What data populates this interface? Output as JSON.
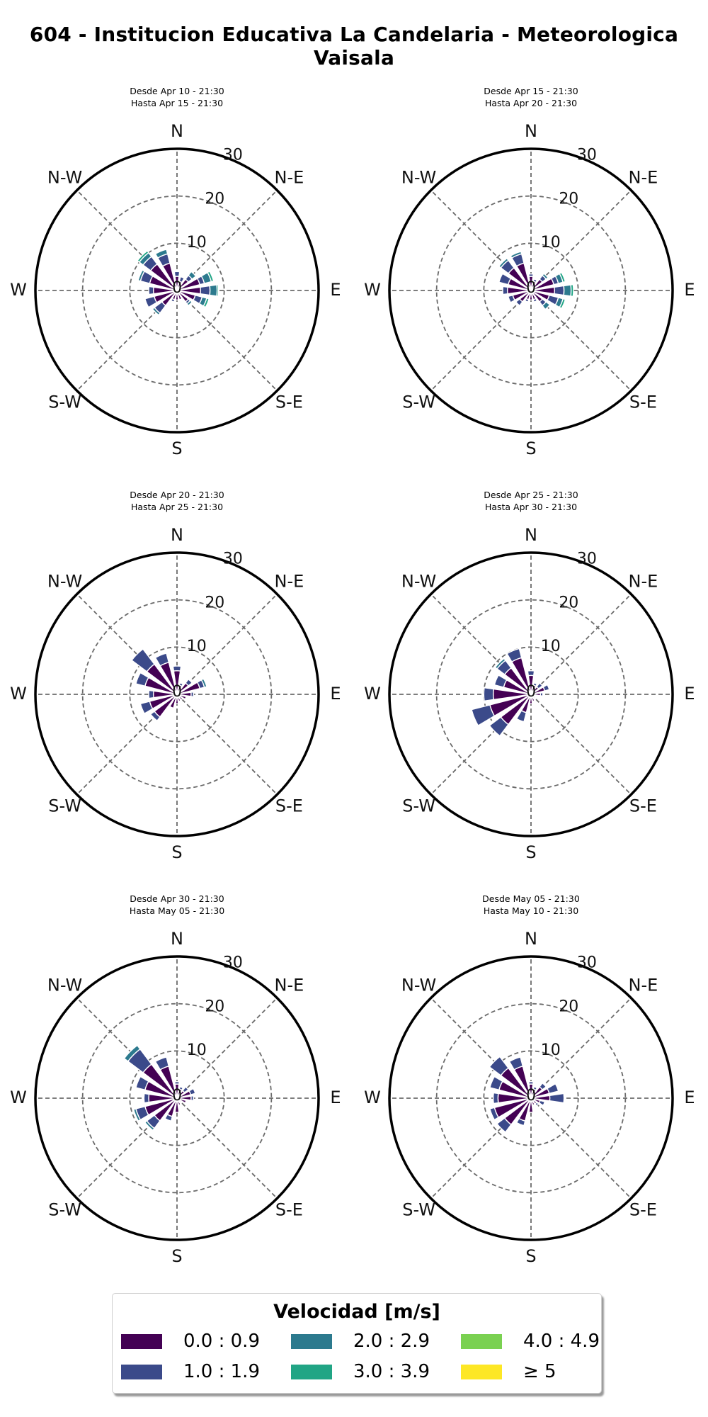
{
  "title": "604 - Institucion Educativa La Candelaria - Meteorologica Vaisala",
  "chart_data": {
    "type": "windrose",
    "directions": [
      "N",
      "NNE",
      "NE",
      "ENE",
      "E",
      "ESE",
      "SE",
      "SSE",
      "S",
      "SSW",
      "SW",
      "WSW",
      "W",
      "WNW",
      "NW",
      "NNW"
    ],
    "compass_labels": [
      "N",
      "N-E",
      "E",
      "S-E",
      "S",
      "S-W",
      "W",
      "N-W"
    ],
    "radial_ticks": [
      "0",
      "10",
      "20",
      "30"
    ],
    "rmax": 30,
    "legend_title": "Velocidad [m/s]",
    "bins": [
      {
        "label": "0.0 : 0.9",
        "color": "#440154"
      },
      {
        "label": "1.0 : 1.9",
        "color": "#3b4a8a"
      },
      {
        "label": "2.0 : 2.9",
        "color": "#2c7a8e"
      },
      {
        "label": "3.0 : 3.9",
        "color": "#21a585"
      },
      {
        "label": "4.0 : 4.9",
        "color": "#7ad151"
      },
      {
        "label": "≥ 5",
        "color": "#fde725"
      }
    ],
    "panels": [
      {
        "desde": "Desde Apr 10 - 21:30",
        "hasta": "Hasta Apr 15 - 21:30",
        "freq": [
          [
            3,
            1,
            0,
            0,
            0,
            0
          ],
          [
            2,
            1,
            0,
            0,
            0,
            0
          ],
          [
            3,
            1,
            1,
            0,
            0,
            0
          ],
          [
            5,
            1,
            1.5,
            0.5,
            0,
            0
          ],
          [
            5,
            2,
            1.5,
            0.3,
            0,
            0
          ],
          [
            4,
            1.5,
            1,
            0.5,
            0,
            0
          ],
          [
            3,
            0.5,
            0.5,
            0,
            0,
            0
          ],
          [
            2,
            0,
            0,
            0,
            0,
            0
          ],
          [
            2,
            0,
            0,
            0,
            0,
            0
          ],
          [
            2,
            0.5,
            0,
            0,
            0,
            0
          ],
          [
            4,
            2,
            0.5,
            0,
            0,
            0
          ],
          [
            5,
            2,
            0,
            0,
            0,
            0
          ],
          [
            5,
            1,
            0,
            0,
            0,
            0
          ],
          [
            6,
            2,
            0.5,
            0,
            0,
            0
          ],
          [
            7,
            2,
            1,
            0.5,
            0,
            0
          ],
          [
            6,
            2,
            1,
            0,
            0,
            0
          ]
        ]
      },
      {
        "desde": "Desde Apr 15 - 21:30",
        "hasta": "Hasta Apr 20 - 21:30",
        "freq": [
          [
            3,
            0.5,
            0,
            0,
            0,
            0
          ],
          [
            2,
            0.5,
            0,
            0,
            0,
            0
          ],
          [
            3,
            1,
            0.5,
            0,
            0,
            0
          ],
          [
            5,
            1,
            1,
            0.5,
            0,
            0
          ],
          [
            5,
            2,
            1.5,
            0.5,
            0,
            0
          ],
          [
            4,
            2,
            1,
            0.5,
            0,
            0
          ],
          [
            3,
            1,
            1,
            0,
            0,
            0
          ],
          [
            2,
            0.5,
            0,
            0,
            0,
            0
          ],
          [
            2,
            0,
            0,
            0,
            0,
            0
          ],
          [
            2,
            0.5,
            0,
            0,
            0,
            0
          ],
          [
            3,
            1,
            0,
            0,
            0,
            0
          ],
          [
            4,
            1,
            0,
            0,
            0,
            0
          ],
          [
            5,
            1,
            0,
            0,
            0,
            0
          ],
          [
            5,
            2,
            0,
            0,
            0,
            0
          ],
          [
            6,
            2,
            0.5,
            0,
            0,
            0
          ],
          [
            6,
            2,
            0.5,
            0,
            0,
            0
          ]
        ]
      },
      {
        "desde": "Desde Apr 20 - 21:30",
        "hasta": "Hasta Apr 25 - 21:30",
        "freq": [
          [
            5,
            1,
            0,
            0,
            0,
            0
          ],
          [
            2,
            0.5,
            0,
            0,
            0,
            0
          ],
          [
            3,
            1,
            0,
            0,
            0,
            0
          ],
          [
            5,
            1,
            0.5,
            0,
            0,
            0
          ],
          [
            3,
            0.5,
            0,
            0,
            0,
            0
          ],
          [
            2,
            0,
            0,
            0,
            0,
            0
          ],
          [
            1.5,
            0,
            0,
            0,
            0,
            0
          ],
          [
            1.5,
            0,
            0,
            0,
            0,
            0
          ],
          [
            2,
            0,
            0,
            0,
            0,
            0
          ],
          [
            3,
            0,
            0,
            0,
            0,
            0
          ],
          [
            6,
            1,
            0,
            0,
            0,
            0
          ],
          [
            6,
            2,
            0,
            0,
            0,
            0
          ],
          [
            5,
            1,
            0,
            0,
            0,
            0
          ],
          [
            7,
            2,
            0,
            0,
            0,
            0
          ],
          [
            8,
            4,
            0,
            0,
            0,
            0
          ],
          [
            7,
            2,
            0,
            0,
            0,
            0
          ]
        ]
      },
      {
        "desde": "Desde Apr 25 - 21:30",
        "hasta": "Hasta Apr 30 - 21:30",
        "freq": [
          [
            4,
            1,
            0,
            0,
            0,
            0
          ],
          [
            2,
            0.5,
            0,
            0,
            0,
            0
          ],
          [
            2,
            1,
            0,
            0,
            0,
            0
          ],
          [
            3,
            1,
            0,
            0,
            0,
            0
          ],
          [
            2,
            0.5,
            0,
            0,
            0,
            0
          ],
          [
            1,
            0,
            0,
            0,
            0,
            0
          ],
          [
            1,
            0,
            0,
            0,
            0,
            0
          ],
          [
            1.5,
            0,
            0,
            0,
            0,
            0
          ],
          [
            2,
            0,
            0,
            0,
            0,
            0
          ],
          [
            4,
            2,
            0,
            0,
            0,
            0
          ],
          [
            8,
            3,
            0,
            0,
            0,
            0
          ],
          [
            9,
            4,
            0,
            0,
            0,
            0
          ],
          [
            8,
            2,
            0,
            0,
            0,
            0
          ],
          [
            6,
            2,
            0,
            0,
            0,
            0
          ],
          [
            7,
            2,
            0.5,
            0,
            0,
            0
          ],
          [
            8,
            2,
            0,
            0,
            0,
            0
          ]
        ]
      },
      {
        "desde": "Desde Apr 30 - 21:30",
        "hasta": "Hasta May 05 - 21:30",
        "freq": [
          [
            3,
            0.5,
            0,
            0,
            0,
            0
          ],
          [
            2,
            0.5,
            0,
            0,
            0,
            0
          ],
          [
            2,
            1,
            0,
            0,
            0,
            0
          ],
          [
            3,
            1,
            0,
            0,
            0,
            0
          ],
          [
            3,
            0.5,
            0,
            0,
            0,
            0
          ],
          [
            2,
            0,
            0,
            0,
            0,
            0
          ],
          [
            1,
            0,
            0,
            0,
            0,
            0
          ],
          [
            1.5,
            0,
            0,
            0,
            0,
            0
          ],
          [
            3,
            0,
            0,
            0,
            0,
            0
          ],
          [
            4,
            1,
            0,
            0,
            0,
            0
          ],
          [
            6,
            2,
            0.5,
            0,
            0,
            0
          ],
          [
            7,
            2,
            0.5,
            0,
            0,
            0
          ],
          [
            6,
            1,
            0,
            0,
            0,
            0
          ],
          [
            7,
            2,
            0,
            0,
            0,
            0
          ],
          [
            9,
            4,
            1,
            0,
            0,
            0
          ],
          [
            7,
            2,
            0,
            0,
            0,
            0
          ]
        ]
      },
      {
        "desde": "Desde May 05 - 21:30",
        "hasta": "Hasta May 10 - 21:30",
        "freq": [
          [
            3,
            0.5,
            0,
            0,
            0,
            0
          ],
          [
            2,
            0.5,
            0,
            0,
            0,
            0
          ],
          [
            3,
            1,
            0,
            0,
            0,
            0
          ],
          [
            4,
            2,
            0,
            0,
            0,
            0
          ],
          [
            4,
            3,
            0,
            0,
            0,
            0
          ],
          [
            2,
            1,
            0,
            0,
            0,
            0
          ],
          [
            1.5,
            0.5,
            0,
            0,
            0,
            0
          ],
          [
            1.5,
            0,
            0,
            0,
            0,
            0
          ],
          [
            3,
            0,
            0,
            0,
            0,
            0
          ],
          [
            5,
            1,
            0,
            0,
            0,
            0
          ],
          [
            7,
            2,
            0,
            0,
            0,
            0
          ],
          [
            8,
            1,
            0,
            0,
            0,
            0
          ],
          [
            7,
            1,
            0,
            0,
            0,
            0
          ],
          [
            7,
            2,
            0,
            0,
            0,
            0
          ],
          [
            8,
            3,
            0,
            0,
            0,
            0
          ],
          [
            7,
            2,
            0,
            0,
            0,
            0
          ]
        ]
      }
    ]
  }
}
